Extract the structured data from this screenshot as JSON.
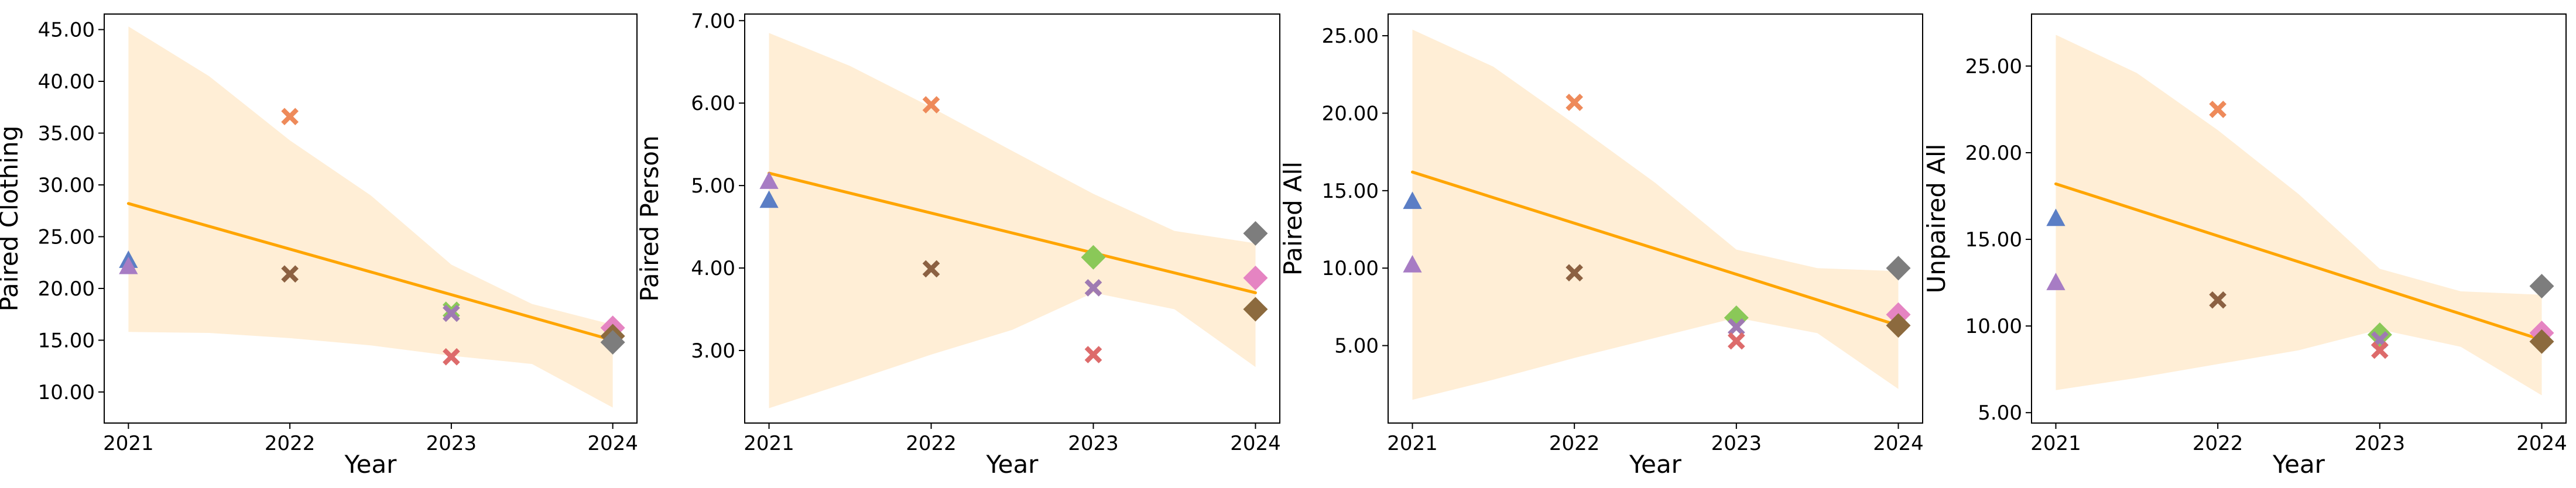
{
  "chart_data": [
    {
      "type": "scatter",
      "xlabel": "Year",
      "ylabel": "Paired Clothing",
      "x_ticks": [
        "2021",
        "2022",
        "2023",
        "2024"
      ],
      "y_ticks": [
        "10.00",
        "15.00",
        "20.00",
        "25.00",
        "30.00",
        "35.00",
        "40.00",
        "45.00"
      ],
      "xlim": [
        2020.85,
        2024.15
      ],
      "ylim": [
        7.0,
        46.5
      ],
      "regression": {
        "start": [
          2021,
          28.2
        ],
        "end": [
          2024,
          15.0
        ]
      },
      "confidence_band": {
        "upper": [
          [
            2021,
            45.3
          ],
          [
            2021.5,
            40.5
          ],
          [
            2022,
            34.3
          ],
          [
            2022.5,
            29.0
          ],
          [
            2023,
            22.3
          ],
          [
            2023.5,
            18.5
          ],
          [
            2024,
            16.5
          ]
        ],
        "lower": [
          [
            2024,
            8.5
          ],
          [
            2023.5,
            12.7
          ],
          [
            2023,
            13.5
          ],
          [
            2022.5,
            14.5
          ],
          [
            2022,
            15.2
          ],
          [
            2021.5,
            15.7
          ],
          [
            2021,
            15.8
          ]
        ]
      },
      "points": [
        {
          "x": 2021,
          "y": 22.7,
          "marker": "triangle",
          "color": "#5b7ec5"
        },
        {
          "x": 2021,
          "y": 22.1,
          "marker": "triangle",
          "color": "#a77cc4"
        },
        {
          "x": 2022,
          "y": 36.6,
          "marker": "x",
          "color": "#ee8a5a"
        },
        {
          "x": 2022,
          "y": 21.4,
          "marker": "x",
          "color": "#8c6142"
        },
        {
          "x": 2023,
          "y": 17.9,
          "marker": "x",
          "color": "#8ac858"
        },
        {
          "x": 2023,
          "y": 17.6,
          "marker": "x",
          "color": "#9f7ab2"
        },
        {
          "x": 2023,
          "y": 13.4,
          "marker": "x",
          "color": "#dd6b6b"
        },
        {
          "x": 2024,
          "y": 16.2,
          "marker": "diamond",
          "color": "#e584c2"
        },
        {
          "x": 2024,
          "y": 15.4,
          "marker": "diamond",
          "color": "#8c6a3e"
        },
        {
          "x": 2024,
          "y": 14.8,
          "marker": "diamond",
          "color": "#7d7d7d"
        }
      ]
    },
    {
      "type": "scatter",
      "xlabel": "Year",
      "ylabel": "Paired Person",
      "x_ticks": [
        "2021",
        "2022",
        "2023",
        "2024"
      ],
      "y_ticks": [
        "3.00",
        "4.00",
        "5.00",
        "6.00",
        "7.00"
      ],
      "xlim": [
        2020.85,
        2024.15
      ],
      "ylim": [
        2.12,
        7.08
      ],
      "regression": {
        "start": [
          2021,
          5.15
        ],
        "end": [
          2024,
          3.7
        ]
      },
      "confidence_band": {
        "upper": [
          [
            2021,
            6.85
          ],
          [
            2021.5,
            6.45
          ],
          [
            2022,
            5.95
          ],
          [
            2022.5,
            5.42
          ],
          [
            2023,
            4.9
          ],
          [
            2023.5,
            4.45
          ],
          [
            2024,
            4.3
          ]
        ],
        "lower": [
          [
            2024,
            2.8
          ],
          [
            2023.5,
            3.5
          ],
          [
            2023,
            3.7
          ],
          [
            2022.5,
            3.25
          ],
          [
            2022,
            2.95
          ],
          [
            2021.5,
            2.62
          ],
          [
            2021,
            2.3
          ]
        ]
      },
      "points": [
        {
          "x": 2021,
          "y": 5.05,
          "marker": "triangle",
          "color": "#a77cc4"
        },
        {
          "x": 2021,
          "y": 4.82,
          "marker": "triangle",
          "color": "#5b7ec5"
        },
        {
          "x": 2022,
          "y": 5.98,
          "marker": "x",
          "color": "#ee8a5a"
        },
        {
          "x": 2022,
          "y": 3.99,
          "marker": "x",
          "color": "#8c6142"
        },
        {
          "x": 2023,
          "y": 4.13,
          "marker": "diamond",
          "color": "#8ac858"
        },
        {
          "x": 2023,
          "y": 3.76,
          "marker": "x",
          "color": "#9f7ab2"
        },
        {
          "x": 2023,
          "y": 2.95,
          "marker": "x",
          "color": "#dd6b6b"
        },
        {
          "x": 2024,
          "y": 4.42,
          "marker": "diamond",
          "color": "#7d7d7d"
        },
        {
          "x": 2024,
          "y": 3.88,
          "marker": "diamond",
          "color": "#e584c2"
        },
        {
          "x": 2024,
          "y": 3.5,
          "marker": "diamond",
          "color": "#8c6a3e"
        }
      ]
    },
    {
      "type": "scatter",
      "xlabel": "Year",
      "ylabel": "Paired All",
      "x_ticks": [
        "2021",
        "2022",
        "2023",
        "2024"
      ],
      "y_ticks": [
        "5.00",
        "10.00",
        "15.00",
        "20.00",
        "25.00"
      ],
      "xlim": [
        2020.85,
        2024.15
      ],
      "ylim": [
        0.0,
        26.4
      ],
      "regression": {
        "start": [
          2021,
          16.2
        ],
        "end": [
          2024,
          6.3
        ]
      },
      "confidence_band": {
        "upper": [
          [
            2021,
            25.4
          ],
          [
            2021.5,
            23.0
          ],
          [
            2022,
            19.3
          ],
          [
            2022.5,
            15.5
          ],
          [
            2023,
            11.2
          ],
          [
            2023.5,
            10.0
          ],
          [
            2024,
            9.8
          ]
        ],
        "lower": [
          [
            2024,
            2.2
          ],
          [
            2023.5,
            5.8
          ],
          [
            2023,
            6.8
          ],
          [
            2022.5,
            5.5
          ],
          [
            2022,
            4.2
          ],
          [
            2021.5,
            2.8
          ],
          [
            2021,
            1.5
          ]
        ]
      },
      "points": [
        {
          "x": 2021,
          "y": 14.3,
          "marker": "triangle",
          "color": "#5b7ec5"
        },
        {
          "x": 2021,
          "y": 10.2,
          "marker": "triangle",
          "color": "#a77cc4"
        },
        {
          "x": 2022,
          "y": 20.7,
          "marker": "x",
          "color": "#ee8a5a"
        },
        {
          "x": 2022,
          "y": 9.7,
          "marker": "x",
          "color": "#8c6142"
        },
        {
          "x": 2023,
          "y": 6.8,
          "marker": "diamond",
          "color": "#8ac858"
        },
        {
          "x": 2023,
          "y": 6.2,
          "marker": "x",
          "color": "#9f7ab2"
        },
        {
          "x": 2023,
          "y": 5.3,
          "marker": "x",
          "color": "#dd6b6b"
        },
        {
          "x": 2024,
          "y": 10.0,
          "marker": "diamond",
          "color": "#7d7d7d"
        },
        {
          "x": 2024,
          "y": 7.0,
          "marker": "diamond",
          "color": "#e584c2"
        },
        {
          "x": 2024,
          "y": 6.3,
          "marker": "diamond",
          "color": "#8c6a3e"
        }
      ]
    },
    {
      "type": "scatter",
      "xlabel": "Year",
      "ylabel": "Unpaired All",
      "x_ticks": [
        "2021",
        "2022",
        "2023",
        "2024"
      ],
      "y_ticks": [
        "5.00",
        "10.00",
        "15.00",
        "20.00",
        "25.00"
      ],
      "xlim": [
        2020.85,
        2024.15
      ],
      "ylim": [
        4.4,
        28.0
      ],
      "regression": {
        "start": [
          2021,
          18.2
        ],
        "end": [
          2024,
          9.2
        ]
      },
      "confidence_band": {
        "upper": [
          [
            2021,
            26.8
          ],
          [
            2021.5,
            24.6
          ],
          [
            2022,
            21.3
          ],
          [
            2022.5,
            17.6
          ],
          [
            2023,
            13.3
          ],
          [
            2023.5,
            12.0
          ],
          [
            2024,
            11.8
          ]
        ],
        "lower": [
          [
            2024,
            6.0
          ],
          [
            2023.5,
            8.8
          ],
          [
            2023,
            9.8
          ],
          [
            2022.5,
            8.6
          ],
          [
            2022,
            7.8
          ],
          [
            2021.5,
            7.0
          ],
          [
            2021,
            6.3
          ]
        ]
      },
      "points": [
        {
          "x": 2021,
          "y": 16.2,
          "marker": "triangle",
          "color": "#5b7ec5"
        },
        {
          "x": 2021,
          "y": 12.5,
          "marker": "triangle",
          "color": "#a77cc4"
        },
        {
          "x": 2022,
          "y": 22.5,
          "marker": "x",
          "color": "#ee8a5a"
        },
        {
          "x": 2022,
          "y": 11.5,
          "marker": "x",
          "color": "#8c6142"
        },
        {
          "x": 2023,
          "y": 9.5,
          "marker": "diamond",
          "color": "#8ac858"
        },
        {
          "x": 2023,
          "y": 9.2,
          "marker": "x",
          "color": "#9f7ab2"
        },
        {
          "x": 2023,
          "y": 8.6,
          "marker": "x",
          "color": "#dd6b6b"
        },
        {
          "x": 2024,
          "y": 12.3,
          "marker": "diamond",
          "color": "#7d7d7d"
        },
        {
          "x": 2024,
          "y": 9.6,
          "marker": "diamond",
          "color": "#e584c2"
        },
        {
          "x": 2024,
          "y": 9.1,
          "marker": "diamond",
          "color": "#8c6a3e"
        }
      ]
    }
  ],
  "style": {
    "regression_color": "#ffa500",
    "band_color": "#ffeed6",
    "axis_color": "#000000"
  }
}
